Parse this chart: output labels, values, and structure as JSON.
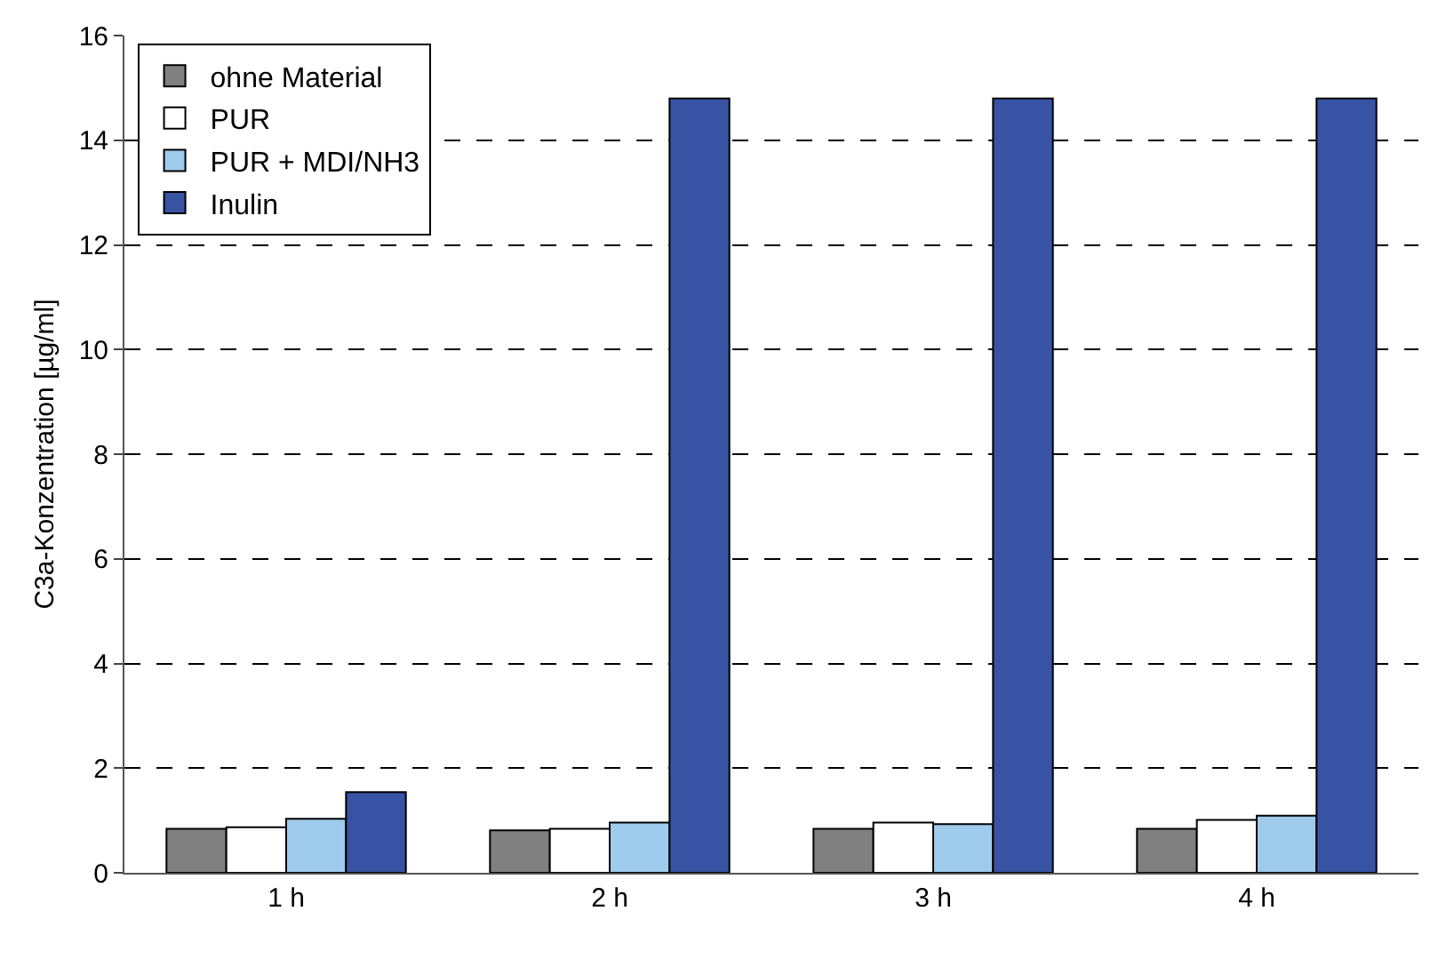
{
  "chart_data": {
    "type": "bar",
    "ylabel": "C3a-Konzentration [µg/ml]",
    "categories": [
      "1 h",
      "2 h",
      "3 h",
      "4 h"
    ],
    "series": [
      {
        "name": "ohne Material",
        "color": "#808080",
        "values": [
          0.84,
          0.81,
          0.84,
          0.84
        ]
      },
      {
        "name": "PUR",
        "color": "#ffffff",
        "values": [
          0.87,
          0.84,
          0.96,
          1.01
        ]
      },
      {
        "name": "PUR + MDI/NH3",
        "color": "#9ecaec",
        "values": [
          1.03,
          0.96,
          0.93,
          1.09
        ]
      },
      {
        "name": "Inulin",
        "color": "#3953a4",
        "values": [
          1.54,
          14.8,
          14.8,
          14.8
        ]
      }
    ],
    "ylim": [
      0,
      16
    ],
    "yticks": [
      0,
      2,
      4,
      6,
      8,
      10,
      12,
      14,
      16
    ],
    "grid": "y",
    "legend": "top left"
  }
}
